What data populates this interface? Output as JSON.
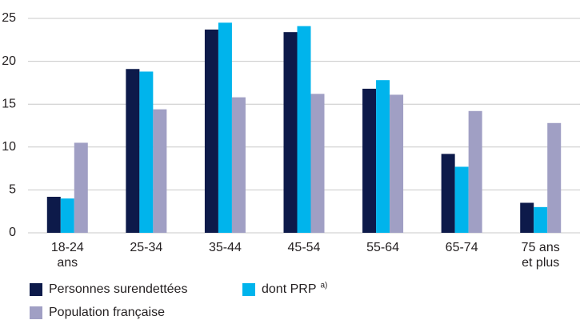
{
  "chart_data": {
    "type": "bar",
    "categories": [
      "18-24 ans",
      "25-34",
      "35-44",
      "45-54",
      "55-64",
      "65-74",
      "75 ans et plus"
    ],
    "series": [
      {
        "name": "Personnes surendettées",
        "color": "#0d1a4a",
        "values": [
          4.2,
          19.1,
          23.7,
          23.4,
          16.8,
          9.2,
          3.5
        ]
      },
      {
        "name": "dont PRP",
        "note": "a)",
        "color": "#00b4ec",
        "values": [
          4.0,
          18.8,
          24.5,
          24.1,
          17.8,
          7.7,
          3.0
        ]
      },
      {
        "name": "Population française",
        "color": "#a09fc4",
        "values": [
          10.5,
          14.4,
          15.8,
          16.2,
          16.1,
          14.2,
          12.8
        ]
      }
    ],
    "ylim": [
      0,
      25
    ],
    "yticks": [
      0,
      5,
      10,
      15,
      20,
      25
    ],
    "grid": true
  }
}
